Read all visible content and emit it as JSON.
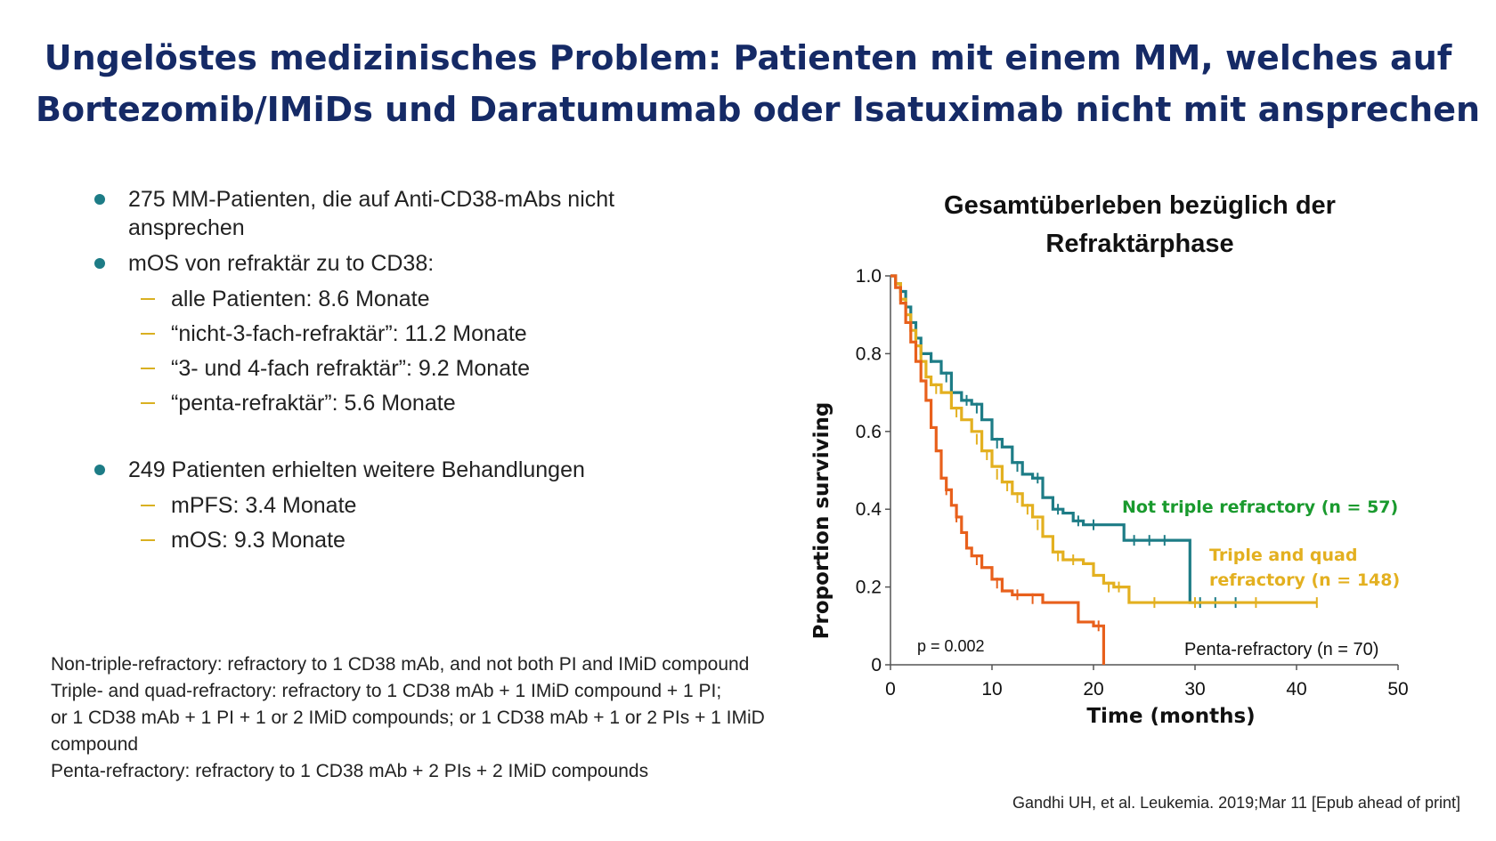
{
  "slide": {
    "title_line1": "Ungelöstes medizinisches Problem: Patienten mit einem MM, welches auf",
    "title_line2": "Bortezomib/IMiDs und Daratumumab oder Isatuximab nicht mit ansprechen"
  },
  "bullets": {
    "b1": "275 MM-Patienten, die auf Anti-CD38-mAbs nicht ansprechen",
    "b2": "mOS von refraktär zu to CD38:",
    "b2_sub": [
      "alle Patienten: 8.6 Monate",
      "“nicht-3-fach-refraktär”: 11.2 Monate",
      "“3- und 4-fach refraktär”: 9.2 Monate",
      "“penta-refraktär”: 5.6 Monate"
    ],
    "b3": "249 Patienten erhielten weitere Behandlungen",
    "b3_sub": [
      "mPFS: 3.4 Monate",
      "mOS: 9.3 Monate"
    ]
  },
  "notes": [
    "Non-triple-refractory: refractory to 1 CD38 mAb, and not both PI and IMiD compound",
    "Triple- and quad-refractory: refractory to 1 CD38 mAb + 1 IMiD compound + 1 PI;",
    "or 1 CD38 mAb + 1 PI + 1 or 2 IMiD compounds; or 1 CD38 mAb + 1 or 2 PIs + 1 IMiD",
    "compound",
    "Penta-refractory: refractory to 1 CD38 mAb + 2 PIs + 2 IMiD compounds"
  ],
  "citation": {
    "prefix": "Gandhi UH, et al.",
    "rest": " Leukemia. 2019;Mar 11 [Epub ahead of print]"
  },
  "colors": {
    "title": "#152a66",
    "bullet_dot": "#1d7c86",
    "sub_dash": "#d9b021",
    "not_triple": "#1d7c86",
    "triple_quad": "#e3b020",
    "penta": "#e8601c",
    "not_triple_label": "#1a9a2e",
    "triple_quad_label": "#e3b020"
  },
  "chart_data": {
    "type": "line",
    "step": true,
    "title_line1": "Gesamtüberleben bezüglich der",
    "title_line2": "Refraktärphase",
    "xlabel": "Time (months)",
    "ylabel": "Proportion surviving",
    "xlim": [
      0,
      50
    ],
    "ylim": [
      0,
      1.0
    ],
    "x_ticks": [
      0,
      10,
      20,
      30,
      40,
      50
    ],
    "y_ticks": [
      {
        "value": 0,
        "label": "0"
      },
      {
        "value": 0.2,
        "label": "0.2"
      },
      {
        "value": 0.4,
        "label": "0.4"
      },
      {
        "value": 0.6,
        "label": "0.6"
      },
      {
        "value": 0.8,
        "label": "0.8"
      },
      {
        "value": 1.0,
        "label": "1.0"
      }
    ],
    "grid": false,
    "annotation": "p = 0.002",
    "series": [
      {
        "name": "Not triple refractory (n = 57)",
        "key": "not_triple",
        "points": [
          [
            0,
            1.0
          ],
          [
            0.5,
            0.98
          ],
          [
            1,
            0.96
          ],
          [
            1.5,
            0.92
          ],
          [
            2,
            0.88
          ],
          [
            2.5,
            0.84
          ],
          [
            3,
            0.8
          ],
          [
            4,
            0.78
          ],
          [
            5,
            0.75
          ],
          [
            6,
            0.7
          ],
          [
            7,
            0.68
          ],
          [
            8,
            0.67
          ],
          [
            9,
            0.63
          ],
          [
            10,
            0.58
          ],
          [
            11,
            0.56
          ],
          [
            12,
            0.52
          ],
          [
            13,
            0.49
          ],
          [
            14,
            0.48
          ],
          [
            15,
            0.43
          ],
          [
            16,
            0.4
          ],
          [
            17,
            0.39
          ],
          [
            18,
            0.37
          ],
          [
            19,
            0.36
          ],
          [
            22,
            0.36
          ],
          [
            23,
            0.32
          ],
          [
            29,
            0.32
          ],
          [
            29.5,
            0.16
          ],
          [
            34,
            0.16
          ]
        ],
        "censors": [
          [
            1,
            0.96
          ],
          [
            4,
            0.79
          ],
          [
            5.5,
            0.74
          ],
          [
            7.5,
            0.68
          ],
          [
            8.5,
            0.66
          ],
          [
            10.5,
            0.57
          ],
          [
            12.5,
            0.51
          ],
          [
            14.5,
            0.48
          ],
          [
            16.5,
            0.4
          ],
          [
            18.5,
            0.37
          ],
          [
            20,
            0.36
          ],
          [
            24,
            0.32
          ],
          [
            25.5,
            0.32
          ],
          [
            27,
            0.32
          ],
          [
            30.5,
            0.16
          ],
          [
            32,
            0.16
          ],
          [
            34,
            0.16
          ]
        ]
      },
      {
        "name": "Triple and quad refractory (n = 148)",
        "key": "triple_quad",
        "points": [
          [
            0,
            1.0
          ],
          [
            0.5,
            0.98
          ],
          [
            1,
            0.94
          ],
          [
            1.5,
            0.9
          ],
          [
            2,
            0.86
          ],
          [
            2.5,
            0.82
          ],
          [
            3,
            0.78
          ],
          [
            3.5,
            0.74
          ],
          [
            4,
            0.72
          ],
          [
            5,
            0.7
          ],
          [
            6,
            0.66
          ],
          [
            7,
            0.63
          ],
          [
            8,
            0.6
          ],
          [
            9,
            0.55
          ],
          [
            10,
            0.51
          ],
          [
            11,
            0.47
          ],
          [
            12,
            0.44
          ],
          [
            13,
            0.41
          ],
          [
            14,
            0.38
          ],
          [
            15,
            0.33
          ],
          [
            16,
            0.29
          ],
          [
            17,
            0.27
          ],
          [
            19,
            0.26
          ],
          [
            20,
            0.23
          ],
          [
            21,
            0.21
          ],
          [
            22,
            0.2
          ],
          [
            23,
            0.2
          ],
          [
            23.5,
            0.16
          ],
          [
            42,
            0.16
          ]
        ],
        "censors": [
          [
            4.5,
            0.71
          ],
          [
            6.5,
            0.65
          ],
          [
            8.5,
            0.58
          ],
          [
            9.5,
            0.54
          ],
          [
            10.5,
            0.49
          ],
          [
            11.5,
            0.46
          ],
          [
            12.5,
            0.43
          ],
          [
            13.5,
            0.4
          ],
          [
            14.5,
            0.36
          ],
          [
            16.5,
            0.28
          ],
          [
            18,
            0.27
          ],
          [
            21.5,
            0.2
          ],
          [
            22.5,
            0.2
          ],
          [
            26,
            0.16
          ],
          [
            30,
            0.16
          ],
          [
            36,
            0.16
          ],
          [
            42,
            0.16
          ]
        ]
      },
      {
        "name": "Penta-refractory (n = 70)",
        "key": "penta",
        "points": [
          [
            0,
            1.0
          ],
          [
            0.5,
            0.97
          ],
          [
            1,
            0.93
          ],
          [
            1.5,
            0.88
          ],
          [
            2,
            0.83
          ],
          [
            2.5,
            0.78
          ],
          [
            3,
            0.73
          ],
          [
            3.5,
            0.68
          ],
          [
            4,
            0.61
          ],
          [
            4.5,
            0.55
          ],
          [
            5,
            0.48
          ],
          [
            5.5,
            0.45
          ],
          [
            6,
            0.41
          ],
          [
            6.5,
            0.38
          ],
          [
            7,
            0.34
          ],
          [
            7.5,
            0.3
          ],
          [
            8,
            0.28
          ],
          [
            9,
            0.25
          ],
          [
            10,
            0.22
          ],
          [
            11,
            0.19
          ],
          [
            12,
            0.18
          ],
          [
            13,
            0.18
          ],
          [
            15,
            0.16
          ],
          [
            18,
            0.16
          ],
          [
            18.5,
            0.11
          ],
          [
            20,
            0.1
          ],
          [
            21,
            0.1
          ],
          [
            21,
            0
          ]
        ],
        "censors": [
          [
            5.5,
            0.45
          ],
          [
            6.5,
            0.38
          ],
          [
            8.5,
            0.27
          ],
          [
            10.5,
            0.21
          ],
          [
            12.5,
            0.18
          ],
          [
            14,
            0.17
          ],
          [
            20.5,
            0.1
          ]
        ]
      }
    ]
  }
}
